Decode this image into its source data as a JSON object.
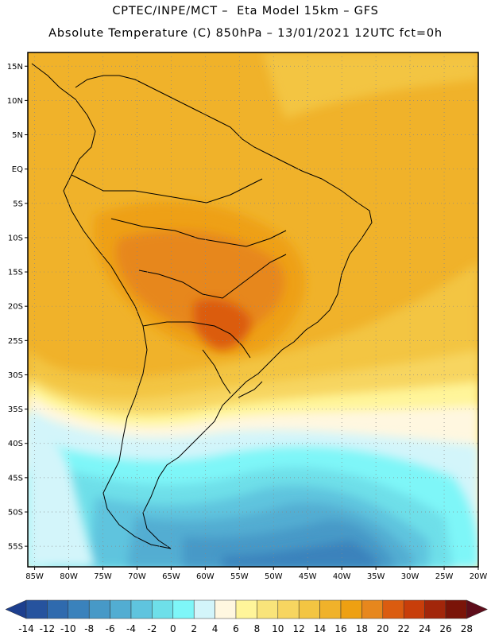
{
  "header": {
    "line1": "CPTEC/INPE/MCT –  Eta Model 15km – GFS",
    "line2": "Absolute Temperature (C) 850hPa – 13/01/2021 12UTC fct=0h"
  },
  "map": {
    "lon_range": [
      -86,
      -20
    ],
    "lat_range": [
      -58,
      17
    ],
    "lat_labels": [
      {
        "v": 15,
        "t": "15N"
      },
      {
        "v": 10,
        "t": "10N"
      },
      {
        "v": 5,
        "t": "5N"
      },
      {
        "v": 0,
        "t": "EQ"
      },
      {
        "v": -5,
        "t": "5S"
      },
      {
        "v": -10,
        "t": "10S"
      },
      {
        "v": -15,
        "t": "15S"
      },
      {
        "v": -20,
        "t": "20S"
      },
      {
        "v": -25,
        "t": "25S"
      },
      {
        "v": -30,
        "t": "30S"
      },
      {
        "v": -35,
        "t": "35S"
      },
      {
        "v": -40,
        "t": "40S"
      },
      {
        "v": -45,
        "t": "45S"
      },
      {
        "v": -50,
        "t": "50S"
      },
      {
        "v": -55,
        "t": "55S"
      }
    ],
    "lon_labels": [
      {
        "v": -85,
        "t": "85W"
      },
      {
        "v": -80,
        "t": "80W"
      },
      {
        "v": -75,
        "t": "75W"
      },
      {
        "v": -70,
        "t": "70W"
      },
      {
        "v": -65,
        "t": "65W"
      },
      {
        "v": -60,
        "t": "60W"
      },
      {
        "v": -55,
        "t": "55W"
      },
      {
        "v": -50,
        "t": "50W"
      },
      {
        "v": -45,
        "t": "45W"
      },
      {
        "v": -40,
        "t": "40W"
      },
      {
        "v": -35,
        "t": "35W"
      },
      {
        "v": -30,
        "t": "30W"
      },
      {
        "v": -25,
        "t": "25W"
      },
      {
        "v": -20,
        "t": "20W"
      }
    ]
  },
  "colorbar": {
    "labels": [
      "-14",
      "-12",
      "-10",
      "-8",
      "-6",
      "-4",
      "-2",
      "0",
      "2",
      "4",
      "6",
      "8",
      "10",
      "12",
      "14",
      "16",
      "18",
      "20",
      "22",
      "24",
      "26",
      "28"
    ],
    "colors": [
      "#1d3f8e",
      "#26539e",
      "#2f6aae",
      "#3a82bc",
      "#4799c7",
      "#52add2",
      "#5fc4de",
      "#6edfe9",
      "#7ef6f8",
      "#d3f5fa",
      "#fff7e0",
      "#fff59a",
      "#f9e47a",
      "#f7d560",
      "#f3c542",
      "#f0b22a",
      "#eea012",
      "#e7871d",
      "#db5c10",
      "#c83e0a",
      "#a2260a",
      "#7a1408",
      "#5e0d1a"
    ]
  }
}
